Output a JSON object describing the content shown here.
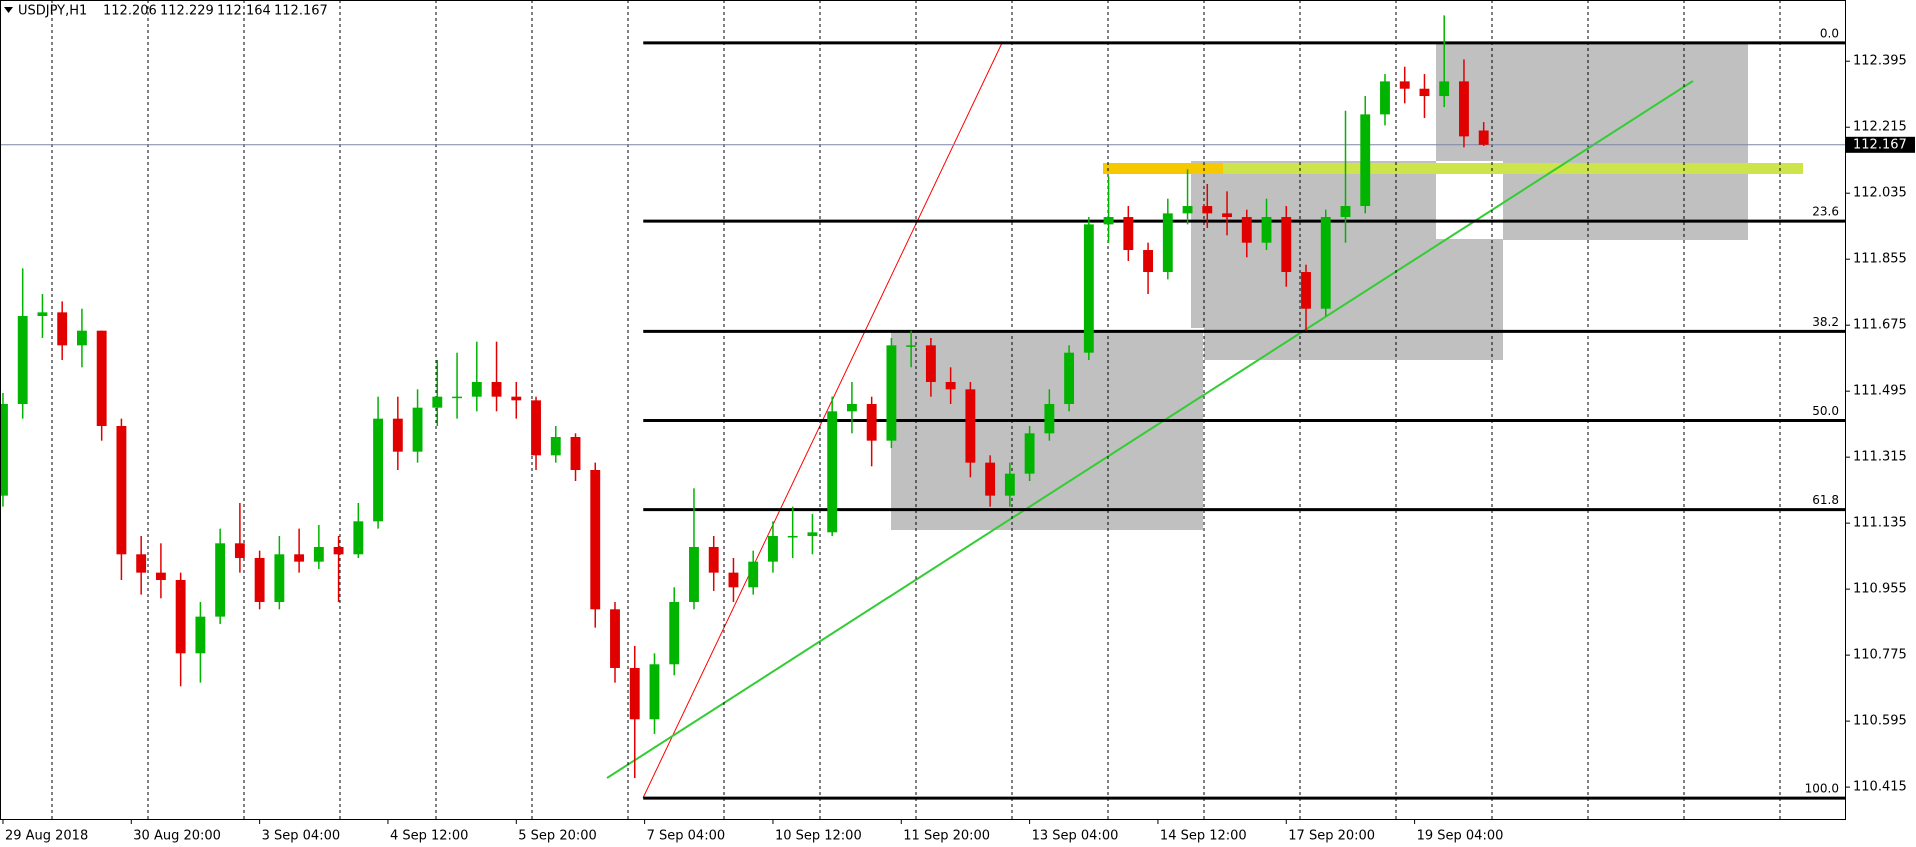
{
  "header": {
    "symbol": "USDJPY,H1",
    "ohlc": [
      112.206,
      112.229,
      112.164,
      112.167
    ]
  },
  "chart_data": {
    "type": "candlestick",
    "ohlc": [
      [
        111.21,
        111.49,
        111.18,
        111.46
      ],
      [
        111.46,
        111.83,
        111.42,
        111.7
      ],
      [
        111.7,
        111.76,
        111.64,
        111.71
      ],
      [
        111.71,
        111.74,
        111.58,
        111.62
      ],
      [
        111.62,
        111.72,
        111.56,
        111.66
      ],
      [
        111.66,
        111.66,
        111.36,
        111.4
      ],
      [
        111.4,
        111.42,
        110.98,
        111.05
      ],
      [
        111.05,
        111.1,
        110.94,
        111.0
      ],
      [
        111.0,
        111.08,
        110.93,
        110.98
      ],
      [
        110.98,
        111.0,
        110.69,
        110.78
      ],
      [
        110.78,
        110.92,
        110.7,
        110.88
      ],
      [
        110.88,
        111.12,
        110.86,
        111.08
      ],
      [
        111.08,
        111.19,
        111.0,
        111.04
      ],
      [
        111.04,
        111.06,
        110.9,
        110.92
      ],
      [
        110.92,
        111.1,
        110.9,
        111.05
      ],
      [
        111.05,
        111.12,
        111.0,
        111.03
      ],
      [
        111.03,
        111.13,
        111.01,
        111.07
      ],
      [
        111.07,
        111.1,
        110.92,
        111.05
      ],
      [
        111.05,
        111.19,
        111.04,
        111.14
      ],
      [
        111.14,
        111.48,
        111.12,
        111.42
      ],
      [
        111.42,
        111.48,
        111.28,
        111.33
      ],
      [
        111.33,
        111.5,
        111.3,
        111.45
      ],
      [
        111.45,
        111.58,
        111.4,
        111.48
      ],
      [
        111.48,
        111.6,
        111.42,
        111.48
      ],
      [
        111.48,
        111.63,
        111.44,
        111.52
      ],
      [
        111.52,
        111.63,
        111.44,
        111.48
      ],
      [
        111.48,
        111.52,
        111.42,
        111.47
      ],
      [
        111.47,
        111.48,
        111.28,
        111.32
      ],
      [
        111.32,
        111.4,
        111.3,
        111.37
      ],
      [
        111.37,
        111.38,
        111.25,
        111.28
      ],
      [
        111.28,
        111.3,
        110.85,
        110.9
      ],
      [
        110.9,
        110.92,
        110.7,
        110.74
      ],
      [
        110.74,
        110.8,
        110.44,
        110.6
      ],
      [
        110.6,
        110.78,
        110.56,
        110.75
      ],
      [
        110.75,
        110.96,
        110.72,
        110.92
      ],
      [
        110.92,
        111.23,
        110.9,
        111.07
      ],
      [
        111.07,
        111.1,
        110.95,
        111.0
      ],
      [
        111.0,
        111.04,
        110.92,
        110.96
      ],
      [
        110.96,
        111.06,
        110.94,
        111.03
      ],
      [
        111.03,
        111.14,
        111.0,
        111.1
      ],
      [
        111.1,
        111.18,
        111.04,
        111.1
      ],
      [
        111.1,
        111.16,
        111.05,
        111.11
      ],
      [
        111.11,
        111.48,
        111.1,
        111.44
      ],
      [
        111.44,
        111.52,
        111.38,
        111.46
      ],
      [
        111.46,
        111.48,
        111.29,
        111.36
      ],
      [
        111.36,
        111.64,
        111.34,
        111.62
      ],
      [
        111.62,
        111.66,
        111.56,
        111.62
      ],
      [
        111.62,
        111.64,
        111.48,
        111.52
      ],
      [
        111.52,
        111.56,
        111.46,
        111.5
      ],
      [
        111.5,
        111.52,
        111.26,
        111.3
      ],
      [
        111.3,
        111.32,
        111.18,
        111.21
      ],
      [
        111.21,
        111.3,
        111.18,
        111.27
      ],
      [
        111.27,
        111.4,
        111.25,
        111.38
      ],
      [
        111.38,
        111.5,
        111.36,
        111.46
      ],
      [
        111.46,
        111.62,
        111.44,
        111.6
      ],
      [
        111.6,
        111.97,
        111.58,
        111.95
      ],
      [
        111.95,
        112.08,
        111.9,
        111.97
      ],
      [
        111.97,
        112.0,
        111.85,
        111.88
      ],
      [
        111.88,
        111.9,
        111.76,
        111.82
      ],
      [
        111.82,
        112.02,
        111.8,
        111.98
      ],
      [
        111.98,
        112.1,
        111.95,
        112.0
      ],
      [
        112.0,
        112.06,
        111.94,
        111.98
      ],
      [
        111.98,
        112.04,
        111.92,
        111.97
      ],
      [
        111.97,
        111.99,
        111.86,
        111.9
      ],
      [
        111.9,
        112.02,
        111.88,
        111.97
      ],
      [
        111.97,
        112.0,
        111.78,
        111.82
      ],
      [
        111.82,
        111.84,
        111.66,
        111.72
      ],
      [
        111.72,
        111.99,
        111.7,
        111.97
      ],
      [
        111.97,
        112.26,
        111.9,
        112.0
      ],
      [
        112.0,
        112.3,
        111.98,
        112.25
      ],
      [
        112.25,
        112.36,
        112.22,
        112.34
      ],
      [
        112.34,
        112.38,
        112.28,
        112.32
      ],
      [
        112.32,
        112.36,
        112.24,
        112.3
      ],
      [
        112.3,
        112.52,
        112.27,
        112.34
      ],
      [
        112.34,
        112.4,
        112.16,
        112.19
      ],
      [
        112.206,
        112.229,
        112.164,
        112.167
      ]
    ],
    "colors": {
      "up": "#00b400",
      "down": "#e00000"
    },
    "xlim": [
      -0.15,
      93.3
    ],
    "ylim": [
      110.328,
      112.562
    ],
    "yticks": [
      110.415,
      110.595,
      110.775,
      110.955,
      111.135,
      111.315,
      111.495,
      111.675,
      111.855,
      112.035,
      112.215,
      112.395
    ],
    "xticks": [
      {
        "value": 0,
        "label": "29 Aug 2018"
      },
      {
        "value": 6.5,
        "label": "30 Aug 20:00"
      },
      {
        "value": 13,
        "label": "3 Sep 04:00"
      },
      {
        "value": 19.5,
        "label": "4 Sep 12:00"
      },
      {
        "value": 26,
        "label": "5 Sep 20:00"
      },
      {
        "value": 32.5,
        "label": "7 Sep 04:00"
      },
      {
        "value": 39,
        "label": "10 Sep 12:00"
      },
      {
        "value": 45.5,
        "label": "11 Sep 20:00"
      },
      {
        "value": 52,
        "label": "13 Sep 04:00"
      },
      {
        "value": 58.5,
        "label": "14 Sep 12:00"
      },
      {
        "value": 65,
        "label": "17 Sep 20:00"
      },
      {
        "value": 71.5,
        "label": "19 Sep 04:00"
      }
    ],
    "bid": 112.167,
    "fib_levels": [
      {
        "label": "0.0",
        "price": 112.445
      },
      {
        "label": "23.6",
        "price": 111.959
      },
      {
        "label": "38.2",
        "price": 111.658
      },
      {
        "label": "50.0",
        "price": 111.415
      },
      {
        "label": "61.8",
        "price": 111.172
      },
      {
        "label": "100.0",
        "price": 110.385
      }
    ]
  }
}
